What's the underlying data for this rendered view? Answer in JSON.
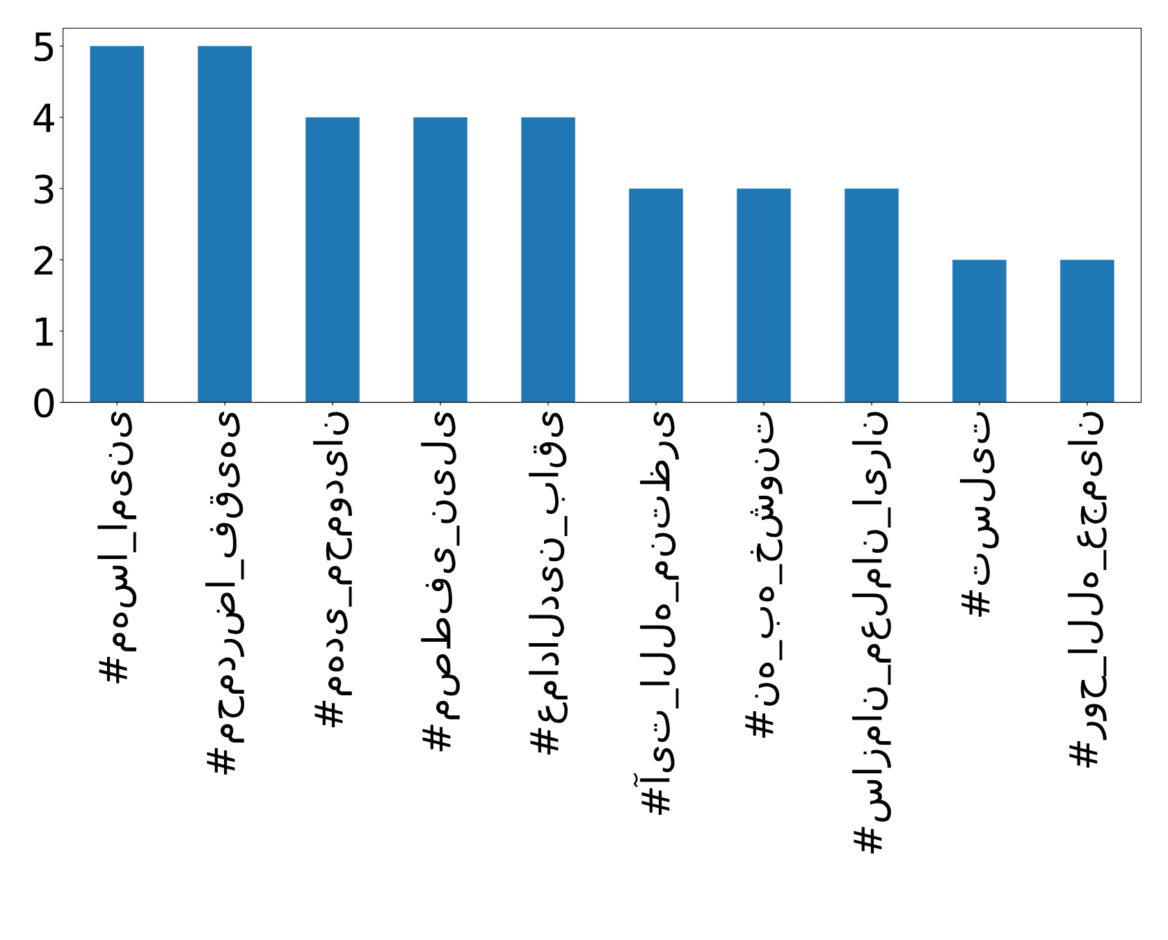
{
  "chart_data": {
    "type": "bar",
    "categories": [
      "#مهسا_امینی",
      "#محمدرضا_فقیهی",
      "#مهدی_محمودیان",
      "#مصطفی_نیلی",
      "#عمادالدین_باقی",
      "#آیت_الله_منتظری",
      "#نه_به_خشونت",
      "#سازمان_معلمان_ایران",
      "#تسلیت",
      "#روح_الله_عجمیان"
    ],
    "values": [
      5,
      5,
      4,
      4,
      4,
      3,
      3,
      3,
      2,
      2
    ],
    "color": "#1f77b4",
    "ylim": [
      0,
      5.25
    ],
    "yticks": [
      0,
      1,
      2,
      3,
      4,
      5
    ],
    "grid": false,
    "legend": false
  }
}
